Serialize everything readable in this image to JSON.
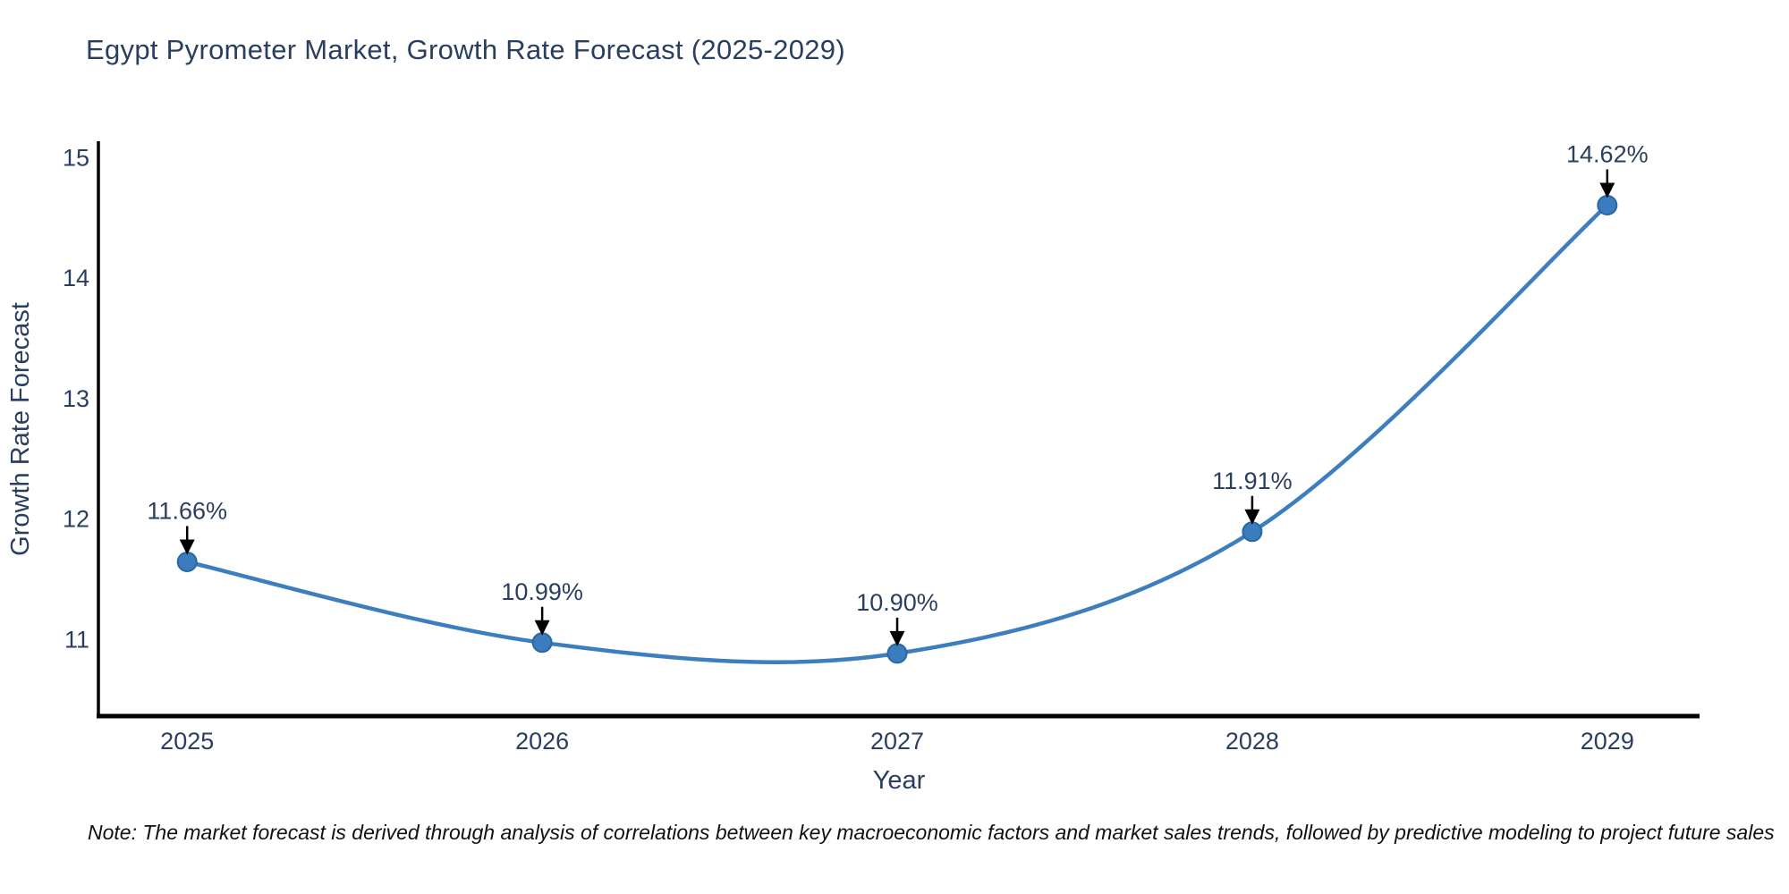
{
  "page": {
    "background": "#ffffff"
  },
  "header": {
    "title": "Egypt Pyrometer Market, Growth Rate Forecast (2025-2029)"
  },
  "footnote": {
    "text": "Note: The market forecast is derived through analysis of correlations between key macroeconomic factors and market sales trends, followed by predictive modeling to project future sales"
  },
  "chart_data": {
    "type": "line",
    "title": "Egypt Pyrometer Market, Growth Rate Forecast (2025-2029)",
    "xlabel": "Year",
    "ylabel": "Growth Rate Forecast",
    "x": [
      2025,
      2026,
      2027,
      2028,
      2029
    ],
    "values": [
      11.66,
      10.99,
      10.9,
      11.91,
      14.62
    ],
    "point_labels": [
      "11.66%",
      "10.99%",
      "10.90%",
      "11.91%",
      "14.62%"
    ],
    "xticks": [
      "2025",
      "2026",
      "2027",
      "2028",
      "2029"
    ],
    "yticks": [
      11,
      12,
      13,
      14,
      15
    ],
    "xlim": [
      2024.75,
      2029.26
    ],
    "ylim": [
      10.38,
      15.15
    ],
    "grid": false,
    "legend": "none",
    "line_shape": "spline",
    "annotations_have_arrows": true,
    "colors": {
      "line": "#3d7ebf",
      "marker_fill": "#3a7cbe",
      "marker_edge": "#2a699f",
      "axis_text": "#2a3f5f",
      "annotation_text": "#2a3f5f",
      "arrow": "#000000",
      "spine": "#000000",
      "title_text": "#2a3f5f"
    }
  }
}
